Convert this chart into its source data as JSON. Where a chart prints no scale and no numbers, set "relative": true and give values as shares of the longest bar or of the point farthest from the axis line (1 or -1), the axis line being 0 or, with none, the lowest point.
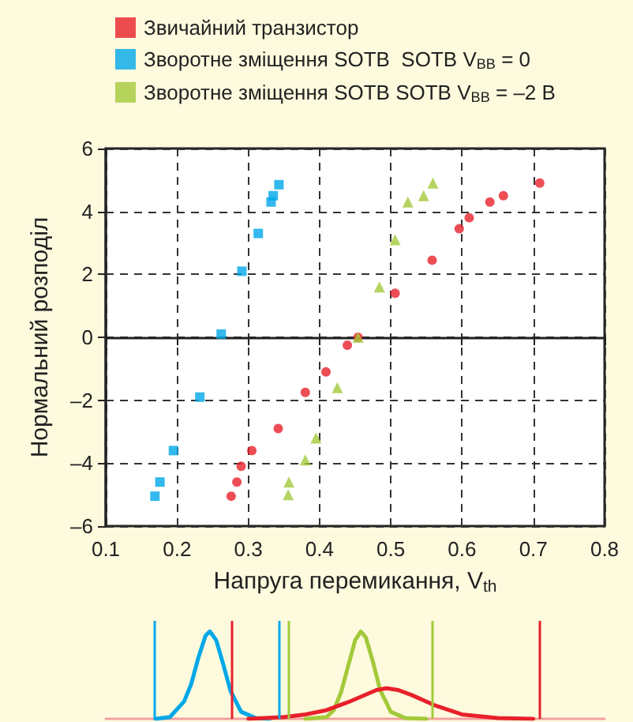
{
  "chart_data": [
    {
      "type": "scatter",
      "xlabel": "Напруга перемикання, V$_{th}$",
      "ylabel": "Нормальний розподіл",
      "xlim": [
        0.1,
        0.8
      ],
      "xticks": [
        0.1,
        0.2,
        0.3,
        0.4,
        0.5,
        0.6,
        0.7,
        0.8
      ],
      "ylim": [
        -6,
        6
      ],
      "yticks": [
        {
          "value": -6,
          "label": "–6"
        },
        {
          "value": -4,
          "label": "–4"
        },
        {
          "value": -2,
          "label": "–2"
        },
        0,
        2,
        4,
        6
      ],
      "grid": true,
      "legend": "top left",
      "series": [
        {
          "name": "Звичайний транзистор",
          "color": "#e8202a",
          "marker": "circle",
          "x": [
            0.276,
            0.284,
            0.29,
            0.305,
            0.342,
            0.38,
            0.409,
            0.439,
            0.454,
            0.506,
            0.558,
            0.596,
            0.61,
            0.639,
            0.658,
            0.709
          ],
          "values": [
            -5.05,
            -4.6,
            -4.1,
            -3.6,
            -2.9,
            -1.75,
            -1.1,
            -0.25,
            0,
            1.4,
            2.45,
            3.45,
            3.8,
            4.3,
            4.5,
            4.9
          ]
        },
        {
          "name": "Зворотне зміщення SOTB  SOTB V$_{BB}$ = 0",
          "color": "#00a8e8",
          "marker": "square",
          "x": [
            0.169,
            0.176,
            0.195,
            0.232,
            0.262,
            0.291,
            0.314,
            0.332,
            0.335,
            0.343
          ],
          "values": [
            -5.05,
            -4.6,
            -3.6,
            -1.9,
            0.1,
            2.1,
            3.3,
            4.3,
            4.5,
            4.85
          ]
        },
        {
          "name": "Зворотне зміщення SOTB SOTB V$_{BB}$ = –2 В",
          "color": "#a3c93a",
          "marker": "triangle",
          "x": [
            0.356,
            0.357,
            0.38,
            0.395,
            0.425,
            0.454,
            0.484,
            0.506,
            0.524,
            0.546,
            0.559
          ],
          "values": [
            -5.0,
            -4.6,
            -3.9,
            -3.2,
            -1.6,
            0,
            1.6,
            3.1,
            4.3,
            4.5,
            4.9
          ]
        }
      ]
    },
    {
      "type": "line",
      "relative": true,
      "xlim": [
        0.1,
        0.8
      ],
      "ref_lines": [
        {
          "axis": "x",
          "value": 0.169,
          "color": "#00a8e8"
        },
        {
          "axis": "x",
          "value": 0.343,
          "color": "#00a8e8"
        },
        {
          "axis": "x",
          "value": 0.276,
          "color": "#e8202a"
        },
        {
          "axis": "x",
          "value": 0.709,
          "color": "#e8202a"
        },
        {
          "axis": "x",
          "value": 0.356,
          "color": "#a3c93a"
        },
        {
          "axis": "x",
          "value": 0.559,
          "color": "#a3c93a"
        }
      ],
      "series": [
        {
          "color": "#00a8e8",
          "x": [
            0.17,
            0.19,
            0.21,
            0.22,
            0.23,
            0.24,
            0.246,
            0.255,
            0.265,
            0.275,
            0.29,
            0.31,
            0.33
          ],
          "values": [
            0,
            0.02,
            0.2,
            0.4,
            0.7,
            0.95,
            1,
            0.9,
            0.62,
            0.32,
            0.08,
            0.01,
            0
          ]
        },
        {
          "color": "#a3c93a",
          "x": [
            0.38,
            0.41,
            0.42,
            0.43,
            0.44,
            0.45,
            0.458,
            0.465,
            0.475,
            0.485,
            0.5,
            0.52,
            0.55
          ],
          "values": [
            0,
            0.02,
            0.1,
            0.3,
            0.6,
            0.9,
            1,
            0.93,
            0.65,
            0.33,
            0.08,
            0.01,
            0
          ]
        },
        {
          "color": "#e8202a",
          "x": [
            0.3,
            0.35,
            0.38,
            0.41,
            0.44,
            0.46,
            0.48,
            0.494,
            0.51,
            0.53,
            0.56,
            0.6,
            0.65,
            0.7
          ],
          "values": [
            0,
            0.02,
            0.05,
            0.1,
            0.19,
            0.26,
            0.33,
            0.35,
            0.33,
            0.27,
            0.16,
            0.05,
            0.01,
            0
          ]
        }
      ]
    }
  ]
}
